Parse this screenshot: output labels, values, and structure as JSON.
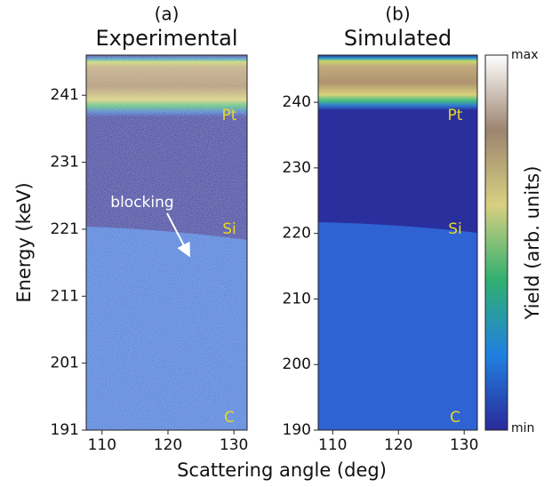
{
  "chart_data": [
    {
      "type": "heatmap",
      "subtitle": "(a)",
      "title": "Experimental",
      "xlim": [
        107.6,
        132
      ],
      "xticks": [
        110,
        120,
        130
      ],
      "ylim": [
        191,
        247
      ],
      "yticks": [
        191,
        201,
        211,
        221,
        231,
        241
      ],
      "annotations": [
        "Pt",
        "Si",
        "C",
        "blocking"
      ]
    },
    {
      "type": "heatmap",
      "subtitle": "(b)",
      "title": "Simulated",
      "xlim": [
        107.8,
        132
      ],
      "xticks": [
        110,
        120,
        130
      ],
      "ylim": [
        190,
        247.2
      ],
      "yticks": [
        190,
        200,
        210,
        220,
        230,
        240
      ],
      "annotations": [
        "Pt",
        "Si",
        "C"
      ]
    }
  ],
  "xlabel": "Scattering angle (deg)",
  "ylabel": "Energy (keV)",
  "colorbar": {
    "label": "Yield (arb. units)",
    "ticks": [
      "max",
      "min"
    ]
  }
}
